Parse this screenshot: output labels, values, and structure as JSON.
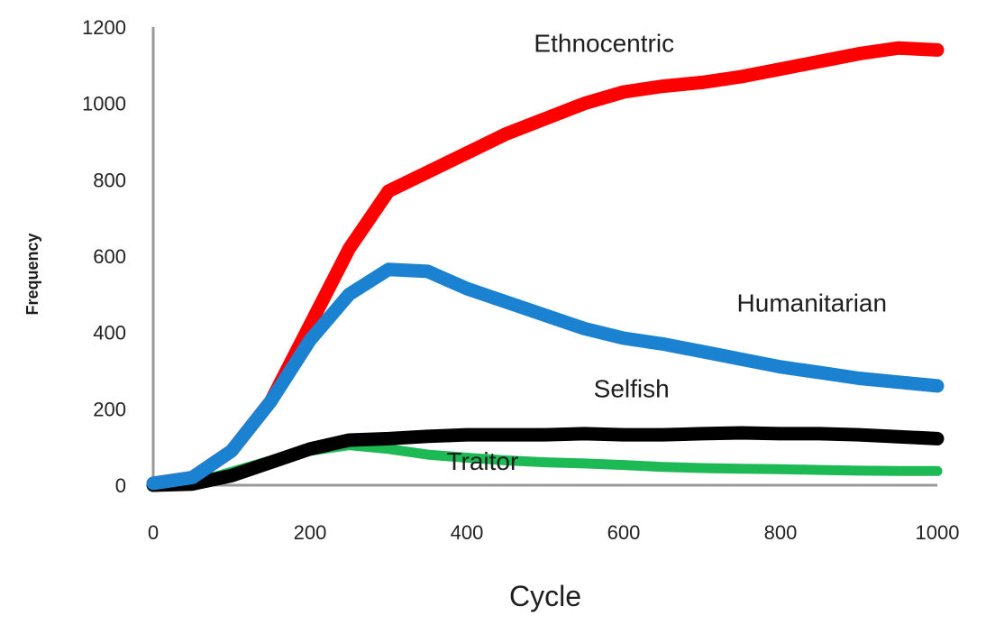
{
  "chart_data": {
    "type": "line",
    "xlabel": "Cycle",
    "ylabel": "Frequency",
    "xlim": [
      0,
      1000
    ],
    "ylim": [
      0,
      1200
    ],
    "x_ticks": [
      "0",
      "200",
      "400",
      "600",
      "800",
      "1000"
    ],
    "y_ticks": [
      "0",
      "200",
      "400",
      "600",
      "800",
      "1000",
      "1200"
    ],
    "grid": false,
    "legend": "none (series labeled directly on plot)",
    "series": [
      {
        "name": "Ethnocentric",
        "color": "#ff0000",
        "points": [
          [
            0,
            5
          ],
          [
            50,
            20
          ],
          [
            100,
            90
          ],
          [
            150,
            220
          ],
          [
            200,
            420
          ],
          [
            250,
            620
          ],
          [
            300,
            770
          ],
          [
            350,
            820
          ],
          [
            400,
            870
          ],
          [
            450,
            920
          ],
          [
            500,
            960
          ],
          [
            550,
            1000
          ],
          [
            600,
            1030
          ],
          [
            650,
            1045
          ],
          [
            700,
            1055
          ],
          [
            750,
            1070
          ],
          [
            800,
            1090
          ],
          [
            850,
            1110
          ],
          [
            900,
            1130
          ],
          [
            950,
            1145
          ],
          [
            1000,
            1140
          ]
        ]
      },
      {
        "name": "Humanitarian",
        "color": "#1b82d1",
        "points": [
          [
            0,
            5
          ],
          [
            50,
            20
          ],
          [
            100,
            90
          ],
          [
            150,
            220
          ],
          [
            200,
            380
          ],
          [
            250,
            500
          ],
          [
            300,
            565
          ],
          [
            350,
            560
          ],
          [
            400,
            515
          ],
          [
            450,
            480
          ],
          [
            500,
            445
          ],
          [
            550,
            410
          ],
          [
            600,
            385
          ],
          [
            650,
            370
          ],
          [
            700,
            350
          ],
          [
            750,
            330
          ],
          [
            800,
            310
          ],
          [
            850,
            295
          ],
          [
            900,
            280
          ],
          [
            950,
            270
          ],
          [
            1000,
            260
          ]
        ]
      },
      {
        "name": "Selfish",
        "color": "#000000",
        "points": [
          [
            0,
            0
          ],
          [
            50,
            3
          ],
          [
            100,
            25
          ],
          [
            150,
            60
          ],
          [
            200,
            95
          ],
          [
            250,
            118
          ],
          [
            300,
            122
          ],
          [
            350,
            128
          ],
          [
            400,
            132
          ],
          [
            450,
            132
          ],
          [
            500,
            132
          ],
          [
            550,
            135
          ],
          [
            600,
            132
          ],
          [
            650,
            132
          ],
          [
            700,
            135
          ],
          [
            750,
            137
          ],
          [
            800,
            135
          ],
          [
            850,
            135
          ],
          [
            900,
            132
          ],
          [
            950,
            127
          ],
          [
            1000,
            122
          ]
        ]
      },
      {
        "name": "Traitor",
        "color": "#1db954",
        "points": [
          [
            0,
            0
          ],
          [
            50,
            5
          ],
          [
            100,
            35
          ],
          [
            150,
            65
          ],
          [
            200,
            90
          ],
          [
            250,
            105
          ],
          [
            300,
            95
          ],
          [
            350,
            80
          ],
          [
            400,
            72
          ],
          [
            450,
            65
          ],
          [
            500,
            60
          ],
          [
            550,
            57
          ],
          [
            600,
            53
          ],
          [
            650,
            48
          ],
          [
            700,
            45
          ],
          [
            750,
            43
          ],
          [
            800,
            42
          ],
          [
            850,
            40
          ],
          [
            900,
            38
          ],
          [
            950,
            37
          ],
          [
            1000,
            37
          ]
        ]
      }
    ]
  }
}
